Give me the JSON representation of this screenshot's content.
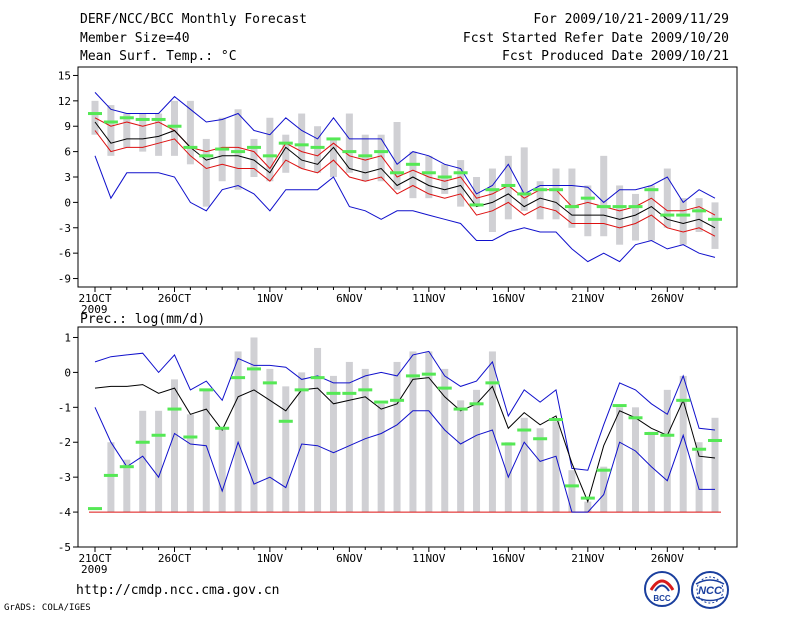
{
  "header": {
    "title": "DERF/NCC/BCC Monthly Forecast",
    "member_size": "Member Size=40",
    "variable": "Mean Surf. Temp.: °C",
    "period": "For 2009/10/21-2009/11/29",
    "started": "Fcst Started Refer Date 2009/10/20",
    "produced": "Fcst Produced Date 2009/10/21"
  },
  "footer": {
    "url": "http://cmdp.ncc.cma.gov.cn",
    "credit": "GrADS: COLA/IGES",
    "logo_bcc": "BCC",
    "logo_ncc": "NCC"
  },
  "colors": {
    "box": "#d0d0d4",
    "median": "#55e855",
    "max": "#1010cc",
    "min": "#1010cc",
    "upper": "#dd1010",
    "lower": "#dd1010",
    "mean": "#000000"
  },
  "chart_data": [
    {
      "type": "line",
      "title": "Mean Surf. Temp.: °C",
      "year_label": "2009",
      "x": [
        "21OCT",
        "22OCT",
        "23OCT",
        "24OCT",
        "25OCT",
        "26OCT",
        "27OCT",
        "28OCT",
        "29OCT",
        "30OCT",
        "31OCT",
        "1NOV",
        "2NOV",
        "3NOV",
        "4NOV",
        "5NOV",
        "6NOV",
        "7NOV",
        "8NOV",
        "9NOV",
        "10NOV",
        "11NOV",
        "12NOV",
        "13NOV",
        "14NOV",
        "15NOV",
        "16NOV",
        "17NOV",
        "18NOV",
        "19NOV",
        "20NOV",
        "21NOV",
        "22NOV",
        "23NOV",
        "24NOV",
        "25NOV",
        "26NOV",
        "27NOV",
        "28NOV",
        "29NOV"
      ],
      "xtick_labels": [
        "21OCT",
        "26OCT",
        "1NOV",
        "6NOV",
        "11NOV",
        "16NOV",
        "21NOV",
        "26NOV"
      ],
      "ylim": [
        -10,
        16
      ],
      "yticks": [
        -9,
        -6,
        -3,
        0,
        3,
        6,
        9,
        12,
        15
      ],
      "series": [
        {
          "name": "box_top",
          "values": [
            12.0,
            11.5,
            10.5,
            10.5,
            10.5,
            12.0,
            12.0,
            7.5,
            10.0,
            11.0,
            7.5,
            10.0,
            8.0,
            10.5,
            9.0,
            7.5,
            10.5,
            8.0,
            8.0,
            9.5,
            6.0,
            5.5,
            4.5,
            5.0,
            3.0,
            4.0,
            5.5,
            6.5,
            2.5,
            4.0,
            4.0,
            2.0,
            5.5,
            2.0,
            1.0,
            2.0,
            4.0,
            0.5,
            0.5,
            0.0
          ]
        },
        {
          "name": "box_bottom",
          "values": [
            8.0,
            5.5,
            6.5,
            6.0,
            5.5,
            5.5,
            4.5,
            -0.5,
            2.5,
            1.5,
            3.0,
            2.5,
            3.5,
            4.0,
            3.5,
            3.0,
            3.5,
            2.5,
            2.5,
            1.5,
            0.5,
            0.5,
            1.0,
            -0.5,
            -0.5,
            -3.5,
            -2.0,
            -1.0,
            -2.0,
            -2.0,
            -3.0,
            -4.0,
            -4.0,
            -5.0,
            -4.5,
            -4.5,
            -3.0,
            -5.0,
            -3.5,
            -5.5
          ]
        },
        {
          "name": "median",
          "values": [
            10.5,
            9.5,
            10.0,
            9.8,
            9.8,
            9.0,
            6.5,
            5.5,
            6.3,
            6.0,
            6.5,
            5.5,
            7.0,
            6.8,
            6.5,
            7.5,
            6.0,
            5.5,
            6.0,
            3.5,
            4.5,
            3.5,
            3.0,
            3.5,
            -0.3,
            1.5,
            2.0,
            1.0,
            1.5,
            1.5,
            -0.5,
            0.5,
            -0.5,
            -0.5,
            -0.5,
            1.5,
            -1.5,
            -1.5,
            -1.0,
            -2.0
          ]
        },
        {
          "name": "max",
          "values": [
            13.0,
            11.0,
            10.5,
            10.5,
            10.5,
            12.5,
            11.0,
            9.5,
            9.8,
            10.5,
            8.5,
            8.0,
            10.0,
            8.5,
            7.5,
            10.0,
            7.5,
            7.5,
            7.5,
            4.5,
            6.0,
            5.5,
            4.5,
            4.0,
            1.0,
            2.0,
            4.5,
            1.0,
            2.0,
            2.0,
            2.0,
            1.8,
            0.0,
            1.5,
            1.5,
            2.0,
            3.0,
            0.0,
            1.5,
            0.5
          ]
        },
        {
          "name": "upper",
          "values": [
            10.0,
            9.0,
            9.5,
            9.0,
            9.5,
            8.5,
            6.5,
            6.0,
            6.5,
            6.5,
            6.0,
            4.0,
            7.0,
            6.0,
            5.5,
            7.0,
            5.5,
            5.0,
            5.5,
            3.0,
            3.8,
            3.0,
            2.5,
            3.0,
            0.5,
            1.0,
            2.0,
            0.5,
            1.5,
            1.5,
            -0.5,
            0.0,
            -0.5,
            -1.0,
            -0.5,
            0.5,
            -1.0,
            -1.0,
            -0.5,
            -1.5
          ]
        },
        {
          "name": "mean",
          "values": [
            9.5,
            7.0,
            7.5,
            7.5,
            7.8,
            8.5,
            6.5,
            5.0,
            5.5,
            5.5,
            5.0,
            3.5,
            6.5,
            5.0,
            4.5,
            6.5,
            4.0,
            3.5,
            4.0,
            2.0,
            3.0,
            2.0,
            1.5,
            2.0,
            -0.5,
            0.0,
            1.0,
            -0.5,
            0.5,
            0.0,
            -1.5,
            -1.5,
            -1.5,
            -2.0,
            -1.5,
            -0.5,
            -2.0,
            -2.5,
            -2.0,
            -3.0
          ]
        },
        {
          "name": "lower",
          "values": [
            8.5,
            6.0,
            6.5,
            6.5,
            7.0,
            7.5,
            5.5,
            4.0,
            4.5,
            4.0,
            4.0,
            2.5,
            5.0,
            4.0,
            3.5,
            5.0,
            3.0,
            2.5,
            3.0,
            1.0,
            2.0,
            1.0,
            0.5,
            1.0,
            -1.5,
            -1.0,
            0.0,
            -1.5,
            -0.5,
            -1.0,
            -2.5,
            -2.5,
            -2.5,
            -3.0,
            -2.5,
            -1.5,
            -3.0,
            -3.5,
            -3.0,
            -4.0
          ]
        },
        {
          "name": "min",
          "values": [
            5.5,
            0.5,
            3.5,
            3.5,
            3.5,
            3.0,
            0.0,
            -1.0,
            1.5,
            2.0,
            1.0,
            -1.0,
            1.5,
            1.5,
            1.5,
            3.0,
            -0.5,
            -1.0,
            -2.0,
            -1.0,
            -1.0,
            -1.5,
            -2.0,
            -2.5,
            -4.5,
            -4.5,
            -3.5,
            -3.0,
            -3.5,
            -3.5,
            -5.5,
            -7.0,
            -6.0,
            -7.0,
            -5.0,
            -4.5,
            -5.5,
            -5.0,
            -6.0,
            -6.5
          ]
        }
      ]
    },
    {
      "type": "line",
      "title": "Prec.: log(mm/d)",
      "year_label": "2009",
      "x": [
        "21OCT",
        "22OCT",
        "23OCT",
        "24OCT",
        "25OCT",
        "26OCT",
        "27OCT",
        "28OCT",
        "29OCT",
        "30OCT",
        "31OCT",
        "1NOV",
        "2NOV",
        "3NOV",
        "4NOV",
        "5NOV",
        "6NOV",
        "7NOV",
        "8NOV",
        "9NOV",
        "10NOV",
        "11NOV",
        "12NOV",
        "13NOV",
        "14NOV",
        "15NOV",
        "16NOV",
        "17NOV",
        "18NOV",
        "19NOV",
        "20NOV",
        "21NOV",
        "22NOV",
        "23NOV",
        "24NOV",
        "25NOV",
        "26NOV",
        "27NOV",
        "28NOV",
        "29NOV"
      ],
      "xtick_labels": [
        "21OCT",
        "26OCT",
        "1NOV",
        "6NOV",
        "11NOV",
        "16NOV",
        "21NOV",
        "26NOV"
      ],
      "ylim": [
        -5,
        1.3
      ],
      "yticks": [
        -5,
        -4,
        -3,
        -2,
        -1,
        0,
        1
      ],
      "floor": -4,
      "series": [
        {
          "name": "box_top",
          "values": [
            -4.0,
            -2.0,
            -2.5,
            -1.1,
            -1.1,
            -0.2,
            -1.2,
            -0.5,
            -1.6,
            0.6,
            1.0,
            0.1,
            -0.4,
            0.0,
            0.7,
            -0.1,
            0.3,
            0.1,
            -0.9,
            0.3,
            0.6,
            0.6,
            0.1,
            -0.8,
            -0.5,
            0.6,
            -2.0,
            -1.3,
            -1.6,
            -1.4,
            -2.8,
            -3.7,
            -2.7,
            -1.0,
            -1.0,
            -1.7,
            -0.5,
            -0.1,
            -2.0,
            -1.3
          ]
        },
        {
          "name": "median",
          "values": [
            -3.9,
            -2.95,
            -2.7,
            -2.0,
            -1.8,
            -1.05,
            -1.85,
            -0.5,
            -1.6,
            -0.15,
            0.1,
            -0.3,
            -1.4,
            -0.5,
            -0.15,
            -0.6,
            -0.6,
            -0.5,
            -0.85,
            -0.8,
            -0.1,
            -0.05,
            -0.45,
            -1.05,
            -0.9,
            -0.3,
            -2.05,
            -1.65,
            -1.9,
            -1.35,
            -3.25,
            -3.6,
            -2.8,
            -0.95,
            -1.3,
            -1.75,
            -1.8,
            -0.8,
            -2.2,
            -1.95
          ]
        },
        {
          "name": "max",
          "values": [
            0.3,
            0.45,
            0.5,
            0.55,
            0.0,
            0.5,
            -0.5,
            -0.25,
            -0.8,
            0.4,
            0.2,
            0.2,
            0.15,
            -0.2,
            -0.1,
            -0.3,
            -0.3,
            -0.1,
            0.0,
            -0.1,
            0.5,
            0.6,
            -0.1,
            -0.4,
            -0.25,
            0.3,
            -1.25,
            -0.5,
            -0.85,
            -0.5,
            -2.75,
            -2.8,
            -1.5,
            -0.3,
            -0.5,
            -0.9,
            -1.2,
            -0.1,
            -1.6,
            -1.65
          ]
        },
        {
          "name": "mean",
          "values": [
            -0.45,
            -0.4,
            -0.4,
            -0.35,
            -0.6,
            -0.45,
            -1.2,
            -1.05,
            -1.65,
            -0.7,
            -0.5,
            -0.8,
            -1.1,
            -0.5,
            -0.45,
            -0.9,
            -0.8,
            -0.7,
            -1.05,
            -0.9,
            -0.2,
            -0.15,
            -0.7,
            -1.1,
            -0.9,
            -0.4,
            -1.6,
            -1.15,
            -1.5,
            -1.25,
            -2.6,
            -3.7,
            -2.1,
            -1.1,
            -1.3,
            -1.6,
            -1.8,
            -0.8,
            -2.4,
            -2.45
          ]
        },
        {
          "name": "min",
          "values": [
            -1.0,
            -2.0,
            -2.7,
            -2.4,
            -3.0,
            -1.75,
            -2.05,
            -2.1,
            -3.4,
            -2.0,
            -3.2,
            -3.0,
            -3.3,
            -2.05,
            -2.1,
            -2.3,
            -2.1,
            -1.9,
            -1.75,
            -1.5,
            -1.1,
            -1.1,
            -1.65,
            -2.05,
            -1.8,
            -1.65,
            -3.0,
            -2.0,
            -2.55,
            -2.4,
            -4.0,
            -4.0,
            -3.5,
            -2.0,
            -2.25,
            -2.7,
            -3.1,
            -1.8,
            -3.35,
            -3.35
          ]
        }
      ]
    }
  ]
}
